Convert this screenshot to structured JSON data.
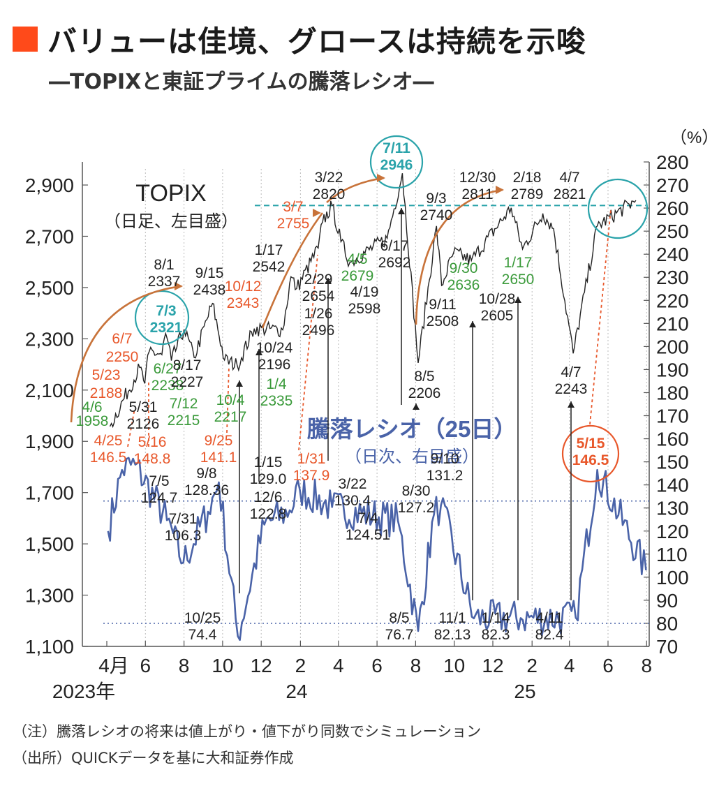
{
  "title": "バリューは佳境、グロースは持続を示唆",
  "subtitle": "―TOPIXと東証プライムの騰落レシオ―",
  "notes": [
    "（注）騰落レシオの将来は値上がり・値下がり同数でシミュレーション",
    "（出所）QUICKデータを基に大和証券作成"
  ],
  "colors": {
    "accent": "#ff4a1a",
    "topix": "#222222",
    "ratio": "#4a63a8",
    "teal": "#2aa3aa",
    "orange": "#e8572a",
    "green": "#3a9a3a",
    "arrowBrown": "#c8733a"
  },
  "chart_data": {
    "type": "line",
    "x_ticks": [
      "4月",
      "6",
      "8",
      "10",
      "12",
      "2",
      "4",
      "6",
      "8",
      "10",
      "12",
      "2",
      "4",
      "6",
      "8"
    ],
    "year_labels": [
      "2023年",
      "24",
      "25"
    ],
    "left_axis": {
      "ylim": [
        1100,
        2900
      ],
      "ticks": [
        "1,100",
        "1,300",
        "1,500",
        "1,700",
        "1,900",
        "2,100",
        "2,300",
        "2,500",
        "2,700",
        "2,900"
      ]
    },
    "right_axis": {
      "unit": "（%）",
      "ylim": [
        70,
        280
      ],
      "ticks": [
        70,
        80,
        90,
        100,
        110,
        120,
        130,
        140,
        150,
        160,
        170,
        180,
        190,
        200,
        210,
        220,
        230,
        240,
        250,
        260,
        270,
        280
      ]
    },
    "series": [
      {
        "name": "TOPIX",
        "name_sub": "（日足、左目盛）",
        "axis": "left",
        "points": [
          [
            "2023-04-06",
            1958
          ],
          [
            "2023-05-23",
            2188
          ],
          [
            "2023-05-31",
            2126
          ],
          [
            "2023-06-07",
            2250
          ],
          [
            "2023-06-27",
            2238
          ],
          [
            "2023-07-03",
            2321
          ],
          [
            "2023-07-12",
            2215
          ],
          [
            "2023-08-01",
            2337
          ],
          [
            "2023-08-17",
            2227
          ],
          [
            "2023-09-15",
            2438
          ],
          [
            "2023-10-04",
            2217
          ],
          [
            "2023-10-24",
            2196
          ],
          [
            "2023-11-20",
            2340
          ],
          [
            "2024-01-04",
            2335
          ],
          [
            "2024-01-17",
            2542
          ],
          [
            "2024-01-26",
            2496
          ],
          [
            "2024-02-29",
            2654
          ],
          [
            "2024-03-07",
            2755
          ],
          [
            "2024-03-22",
            2820
          ],
          [
            "2024-04-05",
            2679
          ],
          [
            "2024-04-19",
            2598
          ],
          [
            "2024-06-17",
            2692
          ],
          [
            "2024-07-11",
            2946
          ],
          [
            "2024-08-05",
            2206
          ],
          [
            "2024-09-03",
            2740
          ],
          [
            "2024-09-11",
            2508
          ],
          [
            "2024-09-30",
            2636
          ],
          [
            "2024-10-28",
            2605
          ],
          [
            "2024-12-30",
            2811
          ],
          [
            "2025-01-17",
            2650
          ],
          [
            "2025-02-18",
            2789
          ],
          [
            "2025-03-07",
            2730
          ],
          [
            "2025-04-07",
            2243
          ],
          [
            "2025-05-15",
            2740
          ],
          [
            "2025-07-15",
            2840
          ]
        ]
      },
      {
        "name": "騰落レシオ（25日）",
        "name_sub": "（日次、右目盛）",
        "axis": "right",
        "points": [
          [
            "2023-04-03",
            120
          ],
          [
            "2023-04-25",
            146.5
          ],
          [
            "2023-05-16",
            148.8
          ],
          [
            "2023-07-05",
            124.7
          ],
          [
            "2023-07-31",
            106.3
          ],
          [
            "2023-09-08",
            128.36
          ],
          [
            "2023-09-25",
            141.1
          ],
          [
            "2023-10-25",
            74.4
          ],
          [
            "2023-12-06",
            122.8
          ],
          [
            "2024-01-15",
            129.0
          ],
          [
            "2024-01-31",
            137.9
          ],
          [
            "2024-03-22",
            130.4
          ],
          [
            "2024-07-04",
            124.51
          ],
          [
            "2024-08-05",
            76.7
          ],
          [
            "2024-08-30",
            127.2
          ],
          [
            "2024-09-10",
            131.2
          ],
          [
            "2024-11-01",
            82.13
          ],
          [
            "2025-01-14",
            82.3
          ],
          [
            "2025-04-11",
            82.4
          ],
          [
            "2025-05-15",
            146.5
          ],
          [
            "2025-07-31",
            103
          ]
        ]
      }
    ],
    "reference_lines": [
      {
        "axis": "left",
        "value": 2820,
        "style": "teal-dashed"
      },
      {
        "axis": "right",
        "value": 133,
        "style": "blue-dotted"
      },
      {
        "axis": "right",
        "value": 80,
        "style": "blue-dotted"
      }
    ],
    "topix_labels": [
      {
        "date": "4/6",
        "value": "1958",
        "color": "green"
      },
      {
        "date": "5/23",
        "value": "2188",
        "color": "orange"
      },
      {
        "date": "5/31",
        "value": "2126",
        "color": "black"
      },
      {
        "date": "6/7",
        "value": "2250",
        "color": "orange"
      },
      {
        "date": "6/27",
        "value": "2238",
        "color": "green"
      },
      {
        "date": "7/3",
        "value": "2321",
        "color": "teal"
      },
      {
        "date": "7/12",
        "value": "2215",
        "color": "green"
      },
      {
        "date": "8/1",
        "value": "2337",
        "color": "black"
      },
      {
        "date": "8/17",
        "value": "2227",
        "color": "black"
      },
      {
        "date": "9/15",
        "value": "2438",
        "color": "black"
      },
      {
        "date": "10/4",
        "value": "2217",
        "color": "green"
      },
      {
        "date": "10/12",
        "value": "2343",
        "color": "orange"
      },
      {
        "date": "10/24",
        "value": "2196",
        "color": "black"
      },
      {
        "date": "1/4",
        "value": "2335",
        "color": "green"
      },
      {
        "date": "1/17",
        "value": "2542",
        "color": "black"
      },
      {
        "date": "1/26",
        "value": "2496",
        "color": "black"
      },
      {
        "date": "2/29",
        "value": "2654",
        "color": "black"
      },
      {
        "date": "3/7",
        "value": "2755",
        "color": "orange"
      },
      {
        "date": "3/22",
        "value": "2820",
        "color": "black"
      },
      {
        "date": "4/5",
        "value": "2679",
        "color": "green"
      },
      {
        "date": "4/19",
        "value": "2598",
        "color": "black"
      },
      {
        "date": "6/17",
        "value": "2692",
        "color": "black"
      },
      {
        "date": "7/11",
        "value": "2946",
        "color": "teal"
      },
      {
        "date": "8/5",
        "value": "2206",
        "color": "black"
      },
      {
        "date": "9/3",
        "value": "2740",
        "color": "black"
      },
      {
        "date": "9/11",
        "value": "2508",
        "color": "black"
      },
      {
        "date": "9/30",
        "value": "2636",
        "color": "green"
      },
      {
        "date": "10/28",
        "value": "2605",
        "color": "black"
      },
      {
        "date": "12/30",
        "value": "2811",
        "color": "black"
      },
      {
        "date": "1/17",
        "value": "2650",
        "color": "green"
      },
      {
        "date": "2/18",
        "value": "2789",
        "color": "black"
      },
      {
        "date": "4/7",
        "value": "2821",
        "color": "black"
      },
      {
        "date": "4/7",
        "value": "2243",
        "color": "black"
      }
    ],
    "ratio_labels": [
      {
        "date": "4/25",
        "value": "146.5",
        "color": "orange"
      },
      {
        "date": "5/16",
        "value": "148.8",
        "color": "orange"
      },
      {
        "date": "7/5",
        "value": "124.7",
        "color": "black"
      },
      {
        "date": "7/31",
        "value": "106.3",
        "color": "black"
      },
      {
        "date": "9/8",
        "value": "128.36",
        "color": "black"
      },
      {
        "date": "9/25",
        "value": "141.1",
        "color": "orange"
      },
      {
        "date": "10/25",
        "value": "74.4",
        "color": "black"
      },
      {
        "date": "12/6",
        "value": "122.8",
        "color": "black"
      },
      {
        "date": "1/15",
        "value": "129.0",
        "color": "black"
      },
      {
        "date": "1/31",
        "value": "137.9",
        "color": "orange"
      },
      {
        "date": "3/22",
        "value": "130.4",
        "color": "black"
      },
      {
        "date": "7/4",
        "value": "124.51",
        "color": "black"
      },
      {
        "date": "8/5",
        "value": "76.7",
        "color": "black"
      },
      {
        "date": "8/30",
        "value": "127.2",
        "color": "black"
      },
      {
        "date": "9/10",
        "value": "131.2",
        "color": "black"
      },
      {
        "date": "11/1",
        "value": "82.13",
        "color": "black"
      },
      {
        "date": "1/14",
        "value": "82.3",
        "color": "black"
      },
      {
        "date": "4/11",
        "value": "82.4",
        "color": "black"
      },
      {
        "date": "5/15",
        "value": "146.5",
        "color": "orange"
      }
    ]
  }
}
